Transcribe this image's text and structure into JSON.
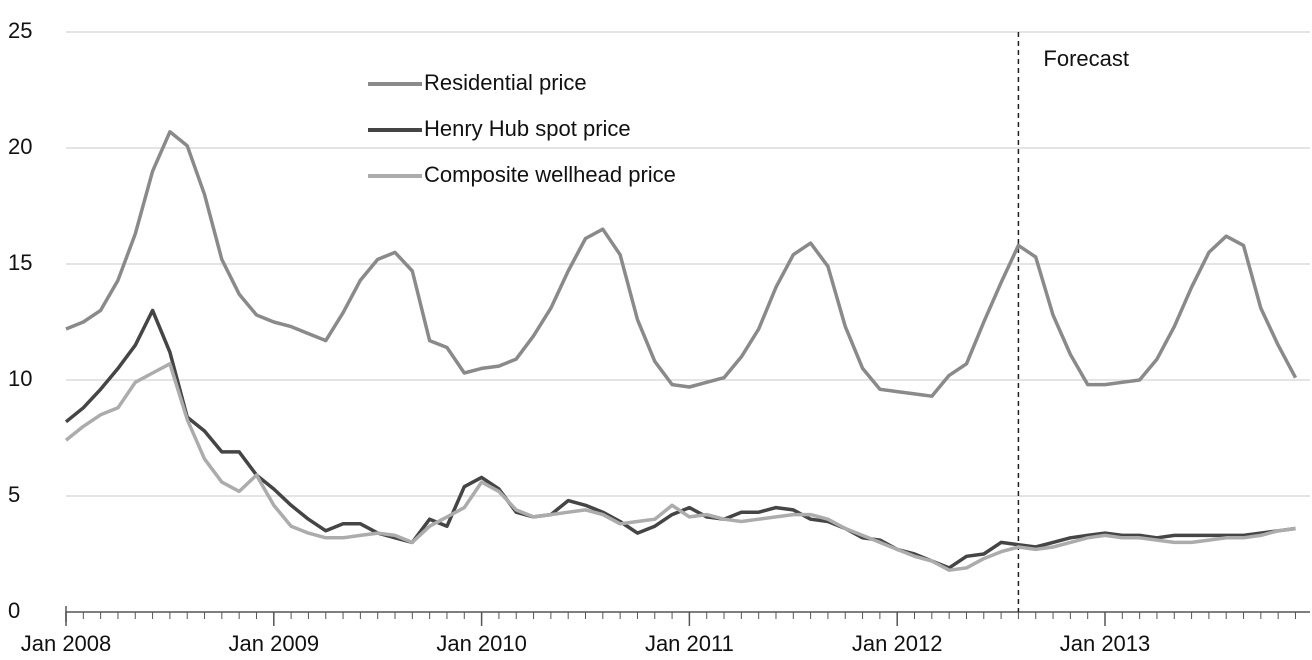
{
  "chart_data": {
    "type": "line",
    "x": [
      "2008-01",
      "2008-02",
      "2008-03",
      "2008-04",
      "2008-05",
      "2008-06",
      "2008-07",
      "2008-08",
      "2008-09",
      "2008-10",
      "2008-11",
      "2008-12",
      "2009-01",
      "2009-02",
      "2009-03",
      "2009-04",
      "2009-05",
      "2009-06",
      "2009-07",
      "2009-08",
      "2009-09",
      "2009-10",
      "2009-11",
      "2009-12",
      "2010-01",
      "2010-02",
      "2010-03",
      "2010-04",
      "2010-05",
      "2010-06",
      "2010-07",
      "2010-08",
      "2010-09",
      "2010-10",
      "2010-11",
      "2010-12",
      "2011-01",
      "2011-02",
      "2011-03",
      "2011-04",
      "2011-05",
      "2011-06",
      "2011-07",
      "2011-08",
      "2011-09",
      "2011-10",
      "2011-11",
      "2011-12",
      "2012-01",
      "2012-02",
      "2012-03",
      "2012-04",
      "2012-05",
      "2012-06",
      "2012-07",
      "2012-08",
      "2012-09",
      "2012-10",
      "2012-11",
      "2012-12",
      "2013-01",
      "2013-02",
      "2013-03",
      "2013-04",
      "2013-05",
      "2013-06",
      "2013-07",
      "2013-08",
      "2013-09",
      "2013-10",
      "2013-11",
      "2013-12"
    ],
    "series": [
      {
        "name": "Residential price",
        "color": "#8a8a8a",
        "values": [
          12.2,
          12.5,
          13.0,
          14.3,
          16.3,
          19.0,
          20.7,
          20.1,
          18.0,
          15.2,
          13.7,
          12.8,
          12.5,
          12.3,
          12.0,
          11.7,
          12.9,
          14.3,
          15.2,
          15.5,
          14.7,
          11.7,
          11.4,
          10.3,
          10.5,
          10.6,
          10.9,
          11.9,
          13.1,
          14.7,
          16.1,
          16.5,
          15.4,
          12.6,
          10.8,
          9.8,
          9.7,
          9.9,
          10.1,
          11.0,
          12.2,
          14.0,
          15.4,
          15.9,
          14.9,
          12.3,
          10.5,
          9.6,
          9.5,
          9.4,
          9.3,
          10.2,
          10.7,
          12.5,
          14.2,
          15.8,
          15.3,
          12.8,
          11.1,
          9.8,
          9.8,
          9.9,
          10.0,
          10.9,
          12.3,
          14.0,
          15.5,
          16.2,
          15.8,
          13.1,
          11.5,
          10.1
        ]
      },
      {
        "name": "Henry Hub spot price",
        "color": "#454545",
        "values": [
          8.2,
          8.8,
          9.6,
          10.5,
          11.5,
          13.0,
          11.2,
          8.4,
          7.8,
          6.9,
          6.9,
          5.9,
          5.3,
          4.6,
          4.0,
          3.5,
          3.8,
          3.8,
          3.4,
          3.2,
          3.0,
          4.0,
          3.7,
          5.4,
          5.8,
          5.3,
          4.3,
          4.1,
          4.2,
          4.8,
          4.6,
          4.3,
          3.9,
          3.4,
          3.7,
          4.2,
          4.5,
          4.1,
          4.0,
          4.3,
          4.3,
          4.5,
          4.4,
          4.0,
          3.9,
          3.6,
          3.2,
          3.1,
          2.7,
          2.5,
          2.2,
          1.9,
          2.4,
          2.5,
          3.0,
          2.9,
          2.8,
          3.0,
          3.2,
          3.3,
          3.4,
          3.3,
          3.3,
          3.2,
          3.3,
          3.3,
          3.3,
          3.3,
          3.3,
          3.4,
          3.5,
          3.6
        ]
      },
      {
        "name": "Composite wellhead price",
        "color": "#acacac",
        "values": [
          7.4,
          8.0,
          8.5,
          8.8,
          9.9,
          10.3,
          10.7,
          8.3,
          6.6,
          5.6,
          5.2,
          5.9,
          4.6,
          3.7,
          3.4,
          3.2,
          3.2,
          3.3,
          3.4,
          3.3,
          3.0,
          3.7,
          4.1,
          4.5,
          5.6,
          5.2,
          4.4,
          4.1,
          4.2,
          4.3,
          4.4,
          4.2,
          3.8,
          3.9,
          4.0,
          4.6,
          4.1,
          4.2,
          4.0,
          3.9,
          4.0,
          4.1,
          4.2,
          4.2,
          4.0,
          3.6,
          3.3,
          3.0,
          2.7,
          2.4,
          2.2,
          1.8,
          1.9,
          2.3,
          2.6,
          2.8,
          2.7,
          2.8,
          3.0,
          3.2,
          3.3,
          3.2,
          3.2,
          3.1,
          3.0,
          3.0,
          3.1,
          3.2,
          3.2,
          3.3,
          3.5,
          3.6
        ]
      }
    ],
    "ylim": [
      0,
      25
    ],
    "yticks": [
      0,
      5,
      10,
      15,
      20,
      25
    ],
    "xticks": [
      {
        "value": "2008-01",
        "label": "Jan 2008"
      },
      {
        "value": "2009-01",
        "label": "Jan 2009"
      },
      {
        "value": "2010-01",
        "label": "Jan 2010"
      },
      {
        "value": "2011-01",
        "label": "Jan 2011"
      },
      {
        "value": "2012-01",
        "label": "Jan 2012"
      },
      {
        "value": "2013-01",
        "label": "Jan 2013"
      }
    ],
    "grid": true,
    "legend": "upper left",
    "annotation": {
      "text": "Forecast",
      "x": "2012-08"
    }
  }
}
